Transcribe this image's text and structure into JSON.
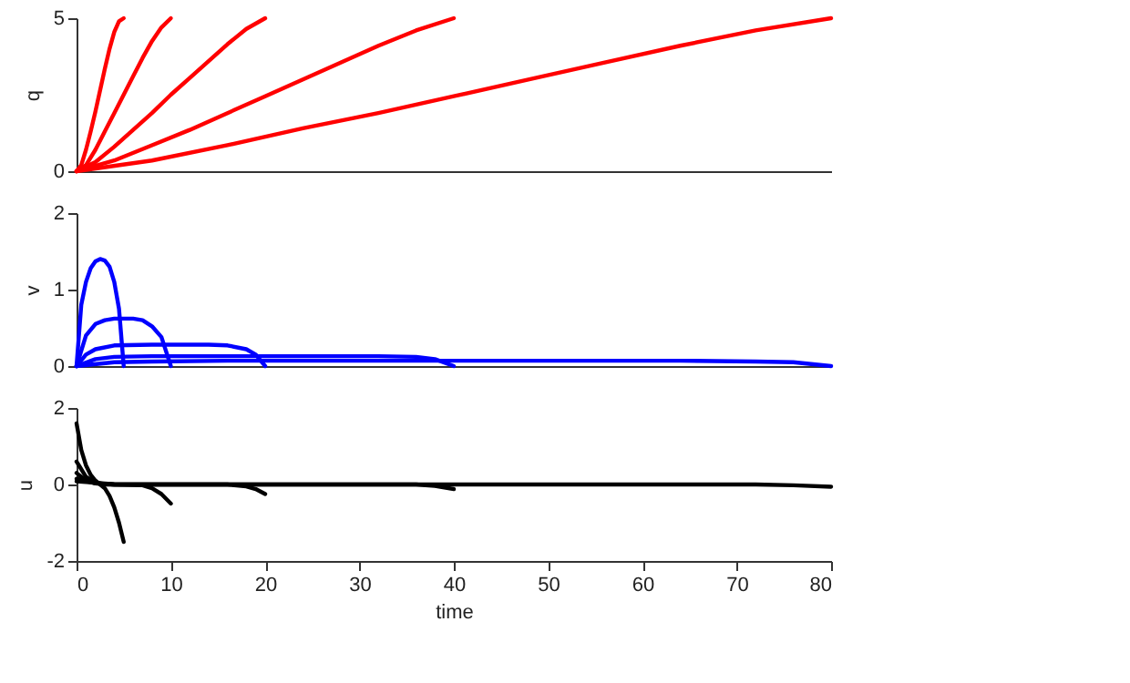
{
  "chart_data": [
    {
      "type": "line",
      "ylabel": "q",
      "xlim": [
        0,
        80
      ],
      "ylim": [
        0,
        5
      ],
      "yticks": [
        0,
        5
      ],
      "tick_labels": "y",
      "series": [
        {
          "color": "#ff0000",
          "x": [
            0,
            0.5,
            1,
            1.5,
            2,
            2.5,
            3,
            3.5,
            4,
            4.5,
            5
          ],
          "values": [
            0,
            0.2,
            0.7,
            1.3,
            1.95,
            2.65,
            3.35,
            4.0,
            4.55,
            4.9,
            5.0
          ]
        },
        {
          "color": "#ff0000",
          "x": [
            0,
            1,
            2,
            3,
            4,
            5,
            6,
            7,
            8,
            9,
            10
          ],
          "values": [
            0,
            0.2,
            0.7,
            1.3,
            1.9,
            2.5,
            3.1,
            3.7,
            4.25,
            4.7,
            5.0
          ]
        },
        {
          "color": "#ff0000",
          "x": [
            0,
            2,
            4,
            6,
            8,
            10,
            12,
            14,
            16,
            18,
            20
          ],
          "values": [
            0,
            0.3,
            0.8,
            1.35,
            1.9,
            2.5,
            3.05,
            3.6,
            4.15,
            4.65,
            5.0
          ]
        },
        {
          "color": "#ff0000",
          "x": [
            0,
            4,
            8,
            12,
            16,
            20,
            24,
            28,
            32,
            36,
            40
          ],
          "values": [
            0,
            0.35,
            0.85,
            1.35,
            1.9,
            2.45,
            3.0,
            3.55,
            4.1,
            4.6,
            5.0
          ]
        },
        {
          "color": "#ff0000",
          "x": [
            0,
            8,
            16,
            24,
            32,
            40,
            48,
            56,
            64,
            72,
            80
          ],
          "values": [
            0,
            0.35,
            0.85,
            1.4,
            1.9,
            2.45,
            3.0,
            3.55,
            4.1,
            4.6,
            5.0
          ]
        }
      ]
    },
    {
      "type": "line",
      "ylabel": "v",
      "xlim": [
        0,
        80
      ],
      "ylim": [
        0,
        2
      ],
      "yticks": [
        0,
        1,
        2
      ],
      "tick_labels": "y",
      "series": [
        {
          "color": "#0000ff",
          "x": [
            0,
            0.5,
            1,
            1.5,
            2,
            2.5,
            3,
            3.5,
            4,
            4.5,
            5
          ],
          "values": [
            0,
            0.8,
            1.1,
            1.28,
            1.37,
            1.4,
            1.38,
            1.3,
            1.1,
            0.75,
            0
          ]
        },
        {
          "color": "#0000ff",
          "x": [
            0,
            1,
            2,
            3,
            4,
            6,
            7,
            8,
            9,
            10
          ],
          "values": [
            0,
            0.4,
            0.55,
            0.6,
            0.62,
            0.62,
            0.6,
            0.52,
            0.38,
            0
          ]
        },
        {
          "color": "#0000ff",
          "x": [
            0,
            1,
            2,
            4,
            8,
            14,
            16,
            18,
            19,
            20
          ],
          "values": [
            0,
            0.15,
            0.22,
            0.27,
            0.28,
            0.28,
            0.27,
            0.22,
            0.15,
            0
          ]
        },
        {
          "color": "#0000ff",
          "x": [
            0,
            2,
            4,
            8,
            32,
            36,
            38,
            40
          ],
          "values": [
            0,
            0.09,
            0.12,
            0.13,
            0.13,
            0.12,
            0.09,
            0
          ]
        },
        {
          "color": "#0000ff",
          "x": [
            0,
            4,
            8,
            16,
            64,
            72,
            76,
            80
          ],
          "values": [
            0,
            0.05,
            0.06,
            0.07,
            0.07,
            0.06,
            0.05,
            0
          ]
        }
      ]
    },
    {
      "type": "line",
      "ylabel": "u",
      "xlabel": "time",
      "xlim": [
        0,
        80
      ],
      "xticks": [
        0,
        10,
        20,
        30,
        40,
        50,
        60,
        70,
        80
      ],
      "ylim": [
        -2,
        2
      ],
      "yticks": [
        -2,
        0,
        2
      ],
      "series": [
        {
          "color": "#000000",
          "x": [
            0,
            0.5,
            1,
            1.5,
            2,
            2.5,
            3,
            3.5,
            4,
            4.5,
            5
          ],
          "values": [
            1.6,
            0.9,
            0.5,
            0.25,
            0.1,
            0,
            -0.1,
            -0.3,
            -0.6,
            -1.0,
            -1.5
          ]
        },
        {
          "color": "#000000",
          "x": [
            0,
            1,
            2,
            3,
            7,
            8,
            9,
            10
          ],
          "values": [
            0.6,
            0.2,
            0.05,
            0,
            -0.02,
            -0.1,
            -0.25,
            -0.5
          ]
        },
        {
          "color": "#000000",
          "x": [
            0,
            1,
            2,
            4,
            16,
            18,
            19,
            20
          ],
          "values": [
            0.3,
            0.1,
            0.03,
            0,
            0,
            -0.05,
            -0.12,
            -0.25
          ]
        },
        {
          "color": "#000000",
          "x": [
            0,
            2,
            4,
            36,
            38,
            40
          ],
          "values": [
            0.15,
            0.03,
            0,
            0,
            -0.04,
            -0.12
          ]
        },
        {
          "color": "#000000",
          "x": [
            0,
            4,
            8,
            72,
            76,
            80
          ],
          "values": [
            0.08,
            0.01,
            0,
            0,
            -0.02,
            -0.06
          ]
        }
      ]
    }
  ]
}
